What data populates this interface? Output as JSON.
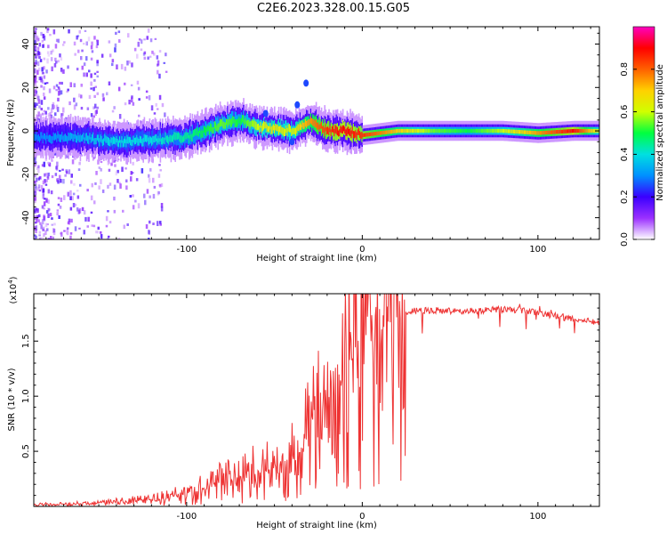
{
  "figure_title": "C2E6.2023.328.00.15.G05",
  "chart_data": [
    {
      "type": "heatmap",
      "title": "C2E6.2023.328.00.15.G05",
      "xlabel": "Height of straight line (km)",
      "ylabel": "Frequency (Hz)",
      "xlim": [
        -187,
        135
      ],
      "ylim": [
        -50,
        48
      ],
      "xticks": [
        -100,
        0,
        100
      ],
      "yticks": [
        40,
        20,
        0,
        -20,
        -40
      ],
      "ytick_labels": [
        "40",
        "20",
        "0",
        "-20",
        "-40"
      ],
      "colorbar": {
        "label": "Normalized spectral amplitude",
        "range": [
          0.0,
          1.0
        ],
        "ticks": [
          0.0,
          0.2,
          0.4,
          0.6,
          0.8
        ],
        "tick_labels": [
          "0.0",
          "0.2",
          "0.4",
          "0.6",
          "0.8"
        ],
        "colormap": [
          "#ffffff",
          "#9b30ff",
          "#3a00ff",
          "#0090ff",
          "#00e0e0",
          "#00ff40",
          "#d0ff00",
          "#ffd000",
          "#ff6000",
          "#ff0000",
          "#ff00c0"
        ]
      },
      "ridge": {
        "description": "frequency centroid of the spectral band versus height",
        "x": [
          -180,
          -160,
          -140,
          -120,
          -100,
          -90,
          -80,
          -70,
          -60,
          -50,
          -40,
          -35,
          -30,
          -20,
          -10,
          0,
          20,
          40,
          60,
          80,
          100,
          120,
          135
        ],
        "y": [
          -3,
          -3,
          -5,
          -4,
          -3,
          0,
          3,
          5,
          2,
          1,
          0,
          2,
          4,
          0,
          0,
          -2,
          0,
          0,
          0,
          0,
          -1,
          0,
          0
        ],
        "peak_amplitude": [
          0.3,
          0.35,
          0.4,
          0.4,
          0.45,
          0.5,
          0.55,
          0.5,
          0.6,
          0.65,
          0.6,
          0.7,
          0.75,
          0.85,
          0.9,
          0.85,
          0.7,
          0.55,
          0.5,
          0.6,
          0.75,
          0.9,
          0.6
        ]
      }
    },
    {
      "type": "line",
      "xlabel": "Height of straight line (km)",
      "ylabel": "SNR (10 * v/v)",
      "multiplier": "(x10",
      "multiplier_exp": "4",
      "multiplier_close": ")",
      "xlim": [
        -187,
        135
      ],
      "ylim": [
        0,
        1.93
      ],
      "xticks": [
        -100,
        0,
        100
      ],
      "yticks": [
        0.5,
        1.0,
        1.5
      ],
      "ytick_labels": [
        "0.5",
        "1.0",
        "1.5"
      ],
      "color": "#ee3333",
      "series": [
        {
          "name": "SNR",
          "x": [
            -187,
            -170,
            -150,
            -140,
            -130,
            -120,
            -110,
            -100,
            -90,
            -80,
            -70,
            -60,
            -50,
            -40,
            -35,
            -30,
            -25,
            -20,
            -15,
            -10,
            -5,
            0,
            5,
            10,
            15,
            20,
            25,
            30,
            40,
            50,
            60,
            70,
            80,
            90,
            100,
            110,
            120,
            135
          ],
          "y": [
            0.02,
            0.02,
            0.03,
            0.04,
            0.05,
            0.06,
            0.08,
            0.12,
            0.16,
            0.22,
            0.26,
            0.3,
            0.35,
            0.45,
            0.55,
            0.65,
            0.8,
            0.95,
            1.1,
            1.25,
            1.35,
            1.45,
            1.55,
            1.62,
            1.68,
            1.72,
            1.76,
            1.78,
            1.78,
            1.77,
            1.77,
            1.78,
            1.79,
            1.78,
            1.76,
            1.73,
            1.7,
            1.67
          ]
        }
      ]
    }
  ]
}
